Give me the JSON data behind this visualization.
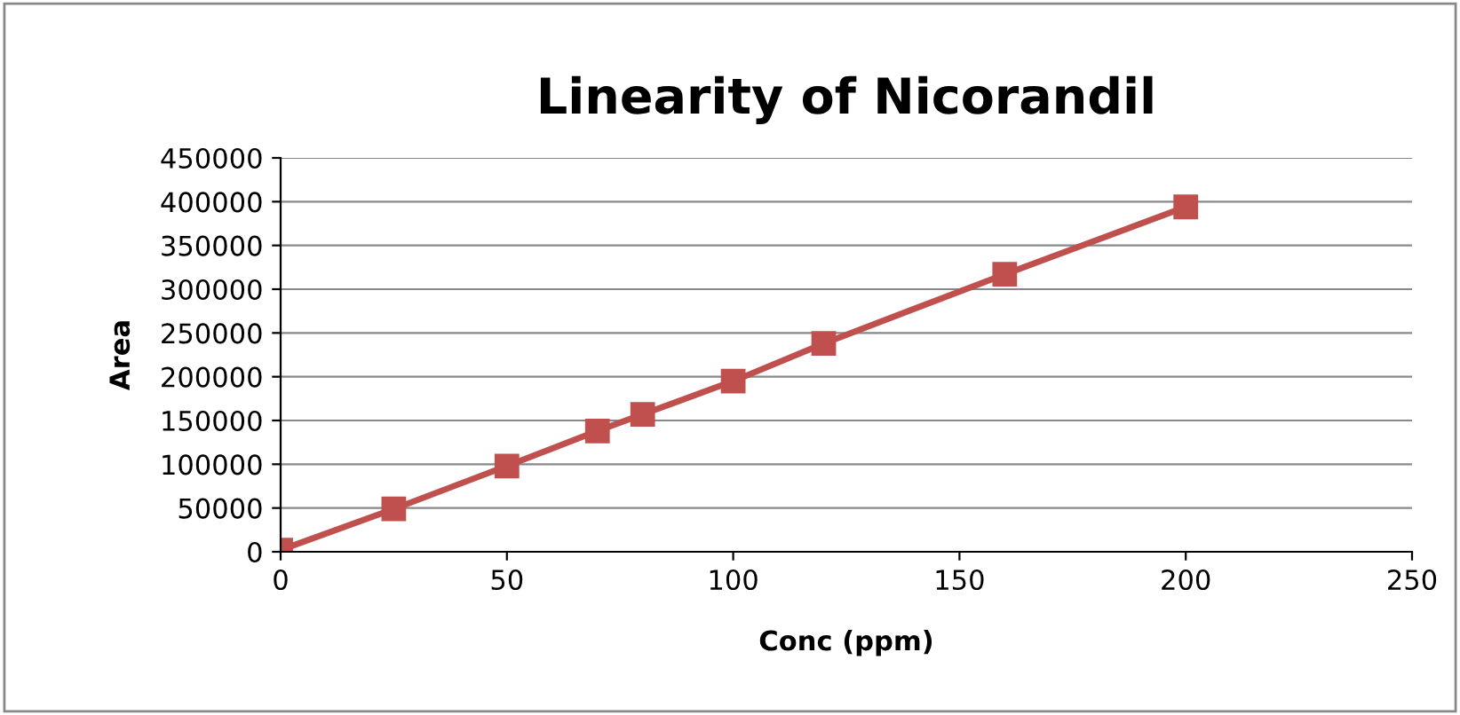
{
  "chart_data": {
    "type": "line",
    "title": "Linearity of Nicorandil",
    "xlabel": "Conc (ppm)",
    "ylabel": "Area",
    "x": [
      0,
      25,
      50,
      70,
      80,
      100,
      120,
      160,
      200
    ],
    "series": [
      {
        "color": "#c0504d",
        "values": [
          2000,
          49000,
          98000,
          138000,
          157000,
          195000,
          238000,
          317000,
          394000
        ]
      }
    ],
    "xlim": [
      0,
      250
    ],
    "xticks": [
      0,
      50,
      100,
      150,
      200,
      250
    ],
    "ylim": [
      0,
      450000
    ],
    "yticks": [
      0,
      50000,
      100000,
      150000,
      200000,
      250000,
      300000,
      350000,
      400000,
      450000
    ],
    "grid": "y",
    "marker": "square",
    "line_style": "solid",
    "legend": false
  }
}
